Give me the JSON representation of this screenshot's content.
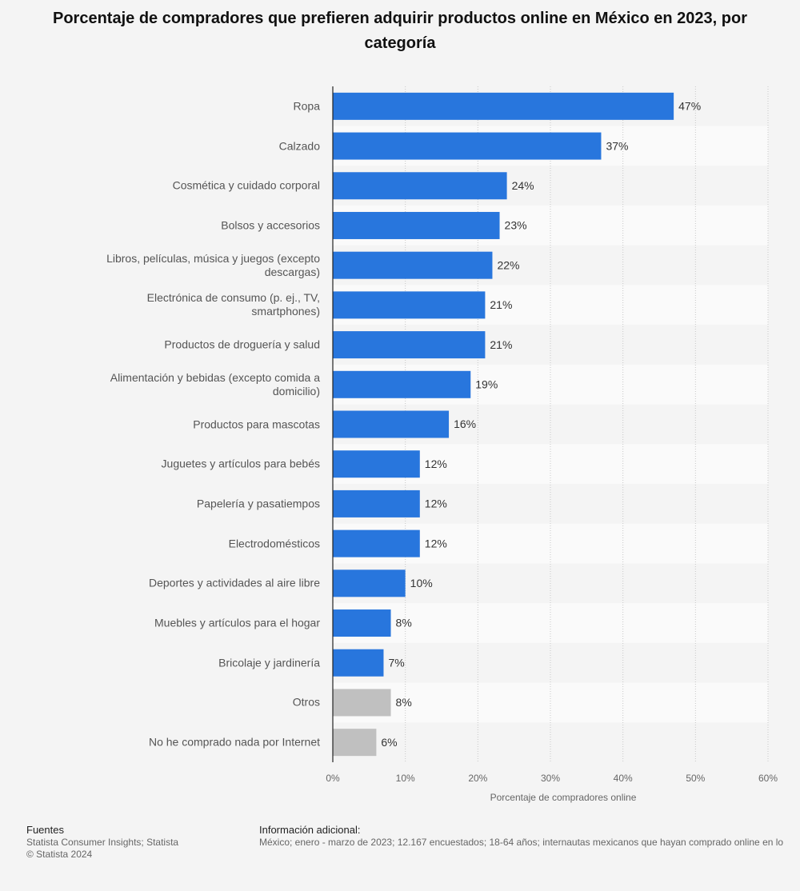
{
  "chart_data": {
    "type": "bar",
    "orientation": "horizontal",
    "title": "Porcentaje de compradores que prefieren adquirir productos online en México en 2023, por categoría",
    "categories": [
      "Ropa",
      "Calzado",
      "Cosmética y cuidado corporal",
      "Bolsos y accesorios",
      "Libros, películas, música y juegos (excepto descargas)",
      "Electrónica de consumo (p. ej., TV, smartphones)",
      "Productos de droguería y salud",
      "Alimentación y bebidas (excepto comida a domicilio)",
      "Productos para mascotas",
      "Juguetes y artículos para bebés",
      "Papelería y pasatiempos",
      "Electrodomésticos",
      "Deportes y actividades al aire libre",
      "Muebles y artículos para el hogar",
      "Bricolaje y jardinería",
      "Otros",
      "No he comprado nada por Internet"
    ],
    "values": [
      47,
      37,
      24,
      23,
      22,
      21,
      21,
      19,
      16,
      12,
      12,
      12,
      10,
      8,
      7,
      8,
      6
    ],
    "value_labels": [
      "47%",
      "37%",
      "24%",
      "23%",
      "22%",
      "21%",
      "21%",
      "19%",
      "16%",
      "12%",
      "12%",
      "12%",
      "10%",
      "8%",
      "7%",
      "8%",
      "6%"
    ],
    "colors": [
      "#2876dd",
      "#2876dd",
      "#2876dd",
      "#2876dd",
      "#2876dd",
      "#2876dd",
      "#2876dd",
      "#2876dd",
      "#2876dd",
      "#2876dd",
      "#2876dd",
      "#2876dd",
      "#2876dd",
      "#2876dd",
      "#2876dd",
      "#c0c0c0",
      "#c0c0c0"
    ],
    "xlim": [
      0,
      60
    ],
    "xticks": [
      {
        "value": 0,
        "label": "0%"
      },
      {
        "value": 10,
        "label": "10%"
      },
      {
        "value": 20,
        "label": "20%"
      },
      {
        "value": 30,
        "label": "30%"
      },
      {
        "value": 40,
        "label": "40%"
      },
      {
        "value": 50,
        "label": "50%"
      },
      {
        "value": 60,
        "label": "60%"
      }
    ],
    "x_label": "Porcentaje de compradores online",
    "grid": true
  },
  "footer": {
    "sources_title": "Fuentes",
    "sources": [
      "Statista Consumer Insights; Statista",
      "© Statista 2024"
    ],
    "info_title": "Información adicional:",
    "info_text": "México; enero - marzo de 2023; 12.167 encuestados; 18-64 años; internautas mexicanos que hayan comprado online en lo"
  }
}
